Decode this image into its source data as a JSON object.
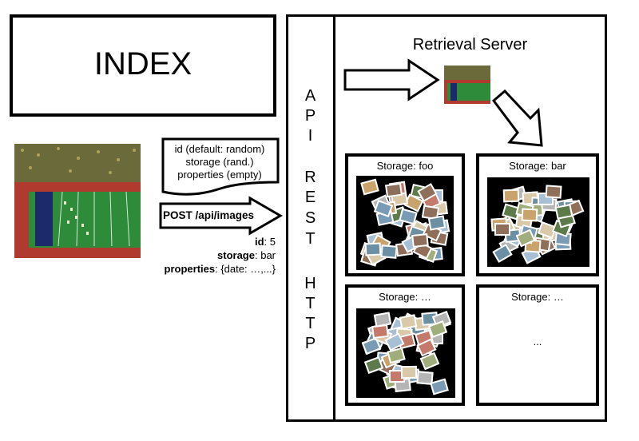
{
  "index": {
    "title": "INDEX"
  },
  "request": {
    "defaults": [
      "id (default: random)",
      "storage (rand.)",
      "properties (empty)"
    ],
    "endpoint": "POST /api/images",
    "fields": [
      {
        "key": "id",
        "value": ": 5"
      },
      {
        "key": "storage",
        "value": ": bar"
      },
      {
        "key": "properties",
        "value": ": {date: …,...}"
      }
    ]
  },
  "api_panel": {
    "letters": [
      "A",
      "P",
      "I",
      "R",
      "E",
      "S",
      "T",
      "H",
      "T",
      "T",
      "P"
    ]
  },
  "server": {
    "title": "Retrieval Server",
    "storages": [
      {
        "label": "Storage: foo"
      },
      {
        "label": "Storage: bar"
      },
      {
        "label": "Storage: …"
      },
      {
        "label": "Storage: …",
        "placeholder": "..."
      }
    ]
  },
  "colors": {
    "field_green": "#2e8b3a",
    "track_red": "#b03a2e",
    "stands": "#6b6a3a",
    "banner_navy": "#1c2a6b"
  }
}
